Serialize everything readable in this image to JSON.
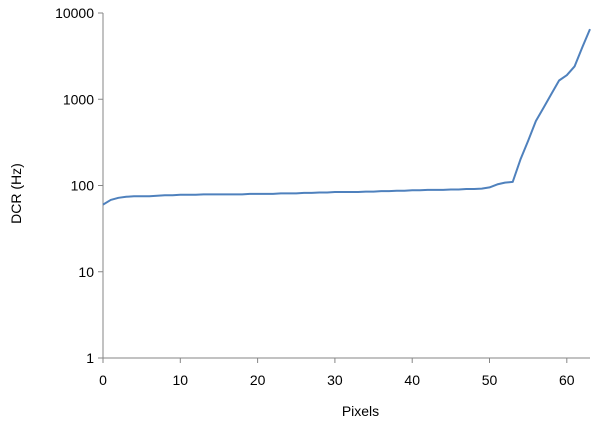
{
  "chart_data": {
    "type": "line",
    "xlabel": "Pixels",
    "ylabel": "DCR (Hz)",
    "y_scale": "log",
    "xlim": [
      0,
      63
    ],
    "ylim": [
      1,
      10000
    ],
    "x_ticks": [
      {
        "value": 0,
        "label": "0"
      },
      {
        "value": 10,
        "label": "10"
      },
      {
        "value": 20,
        "label": "20"
      },
      {
        "value": 30,
        "label": "30"
      },
      {
        "value": 40,
        "label": "40"
      },
      {
        "value": 50,
        "label": "50"
      },
      {
        "value": 60,
        "label": "60"
      }
    ],
    "y_ticks": [
      {
        "value": 1,
        "label": "1"
      },
      {
        "value": 10,
        "label": "10"
      },
      {
        "value": 100,
        "label": "100"
      },
      {
        "value": 1000,
        "label": "1000"
      },
      {
        "value": 10000,
        "label": "10000"
      }
    ],
    "grid": false,
    "legend": "none",
    "line_color": "#4f81bd",
    "series": [
      {
        "x": [
          0,
          1,
          2,
          3,
          4,
          5,
          6,
          7,
          8,
          9,
          10,
          11,
          12,
          13,
          14,
          15,
          16,
          17,
          18,
          19,
          20,
          21,
          22,
          23,
          24,
          25,
          26,
          27,
          28,
          29,
          30,
          31,
          32,
          33,
          34,
          35,
          36,
          37,
          38,
          39,
          40,
          41,
          42,
          43,
          44,
          45,
          46,
          47,
          48,
          49,
          50,
          51,
          52,
          53,
          54,
          55,
          56,
          57,
          58,
          59,
          60,
          61,
          62,
          63
        ],
        "y": [
          60,
          68,
          72,
          74,
          75,
          75,
          75,
          76,
          77,
          77,
          78,
          78,
          78,
          79,
          79,
          79,
          79,
          79,
          79,
          80,
          80,
          80,
          80,
          81,
          81,
          81,
          82,
          82,
          83,
          83,
          84,
          84,
          84,
          84,
          85,
          85,
          86,
          86,
          87,
          87,
          88,
          88,
          89,
          89,
          89,
          90,
          90,
          91,
          91,
          92,
          95,
          103,
          108,
          110,
          200,
          330,
          560,
          800,
          1150,
          1650,
          1900,
          2400,
          4000,
          6500
        ]
      }
    ]
  }
}
